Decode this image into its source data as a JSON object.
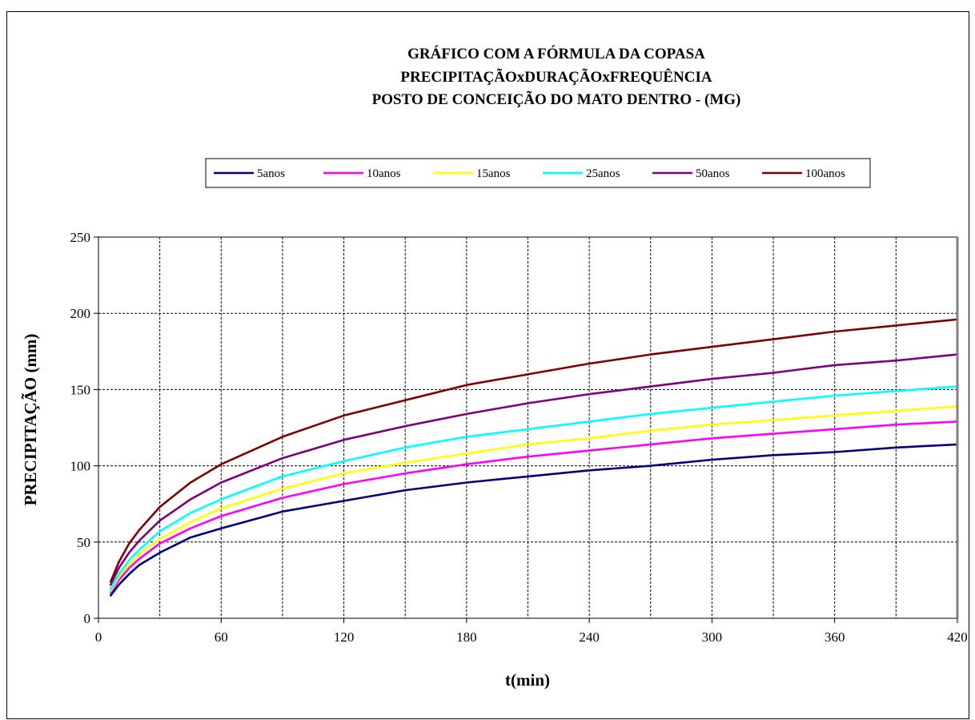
{
  "chart_data": {
    "type": "line",
    "title": [
      "GRÁFICO COM A FÓRMULA DA COPASA",
      "PRECIPITAÇÃOxDURAÇÃOxFREQUÊNCIA",
      "POSTO DE CONCEIÇÃO DO MATO DENTRO - (MG)"
    ],
    "xlabel": "t(min)",
    "ylabel": "PRECIPITAÇÃO  (mm)",
    "xlim": [
      0,
      420
    ],
    "ylim": [
      0,
      250
    ],
    "xticks": [
      0,
      60,
      120,
      180,
      240,
      300,
      360,
      420
    ],
    "yticks": [
      0,
      50,
      100,
      150,
      200,
      250
    ],
    "x_gridlines": [
      30,
      60,
      90,
      120,
      150,
      180,
      210,
      240,
      270,
      300,
      330,
      360,
      390
    ],
    "y_gridlines": [
      50,
      100,
      150,
      200
    ],
    "grid": true,
    "legend_position": "top",
    "x": [
      6,
      10,
      15,
      20,
      30,
      45,
      60,
      90,
      120,
      150,
      180,
      210,
      240,
      270,
      300,
      330,
      360,
      390,
      420
    ],
    "series": [
      {
        "name": "5anos",
        "color": "#000080",
        "values": [
          15,
          22,
          29,
          35,
          43,
          53,
          59,
          70,
          77,
          84,
          89,
          93,
          97,
          100,
          104,
          107,
          109,
          112,
          114
        ]
      },
      {
        "name": "10anos",
        "color": "#FF00FF",
        "values": [
          17,
          25,
          33,
          39,
          49,
          59,
          67,
          79,
          88,
          95,
          101,
          106,
          110,
          114,
          118,
          121,
          124,
          127,
          129
        ]
      },
      {
        "name": "15anos",
        "color": "#FFFF00",
        "values": [
          18,
          27,
          35,
          42,
          52,
          63,
          72,
          85,
          95,
          102,
          108,
          114,
          118,
          123,
          127,
          130,
          133,
          136,
          139
        ]
      },
      {
        "name": "25anos",
        "color": "#00FFFF",
        "values": [
          19,
          29,
          38,
          45,
          57,
          69,
          78,
          93,
          103,
          112,
          119,
          124,
          129,
          134,
          138,
          142,
          146,
          149,
          152
        ]
      },
      {
        "name": "50anos",
        "color": "#800080",
        "values": [
          22,
          33,
          43,
          51,
          64,
          78,
          89,
          105,
          117,
          126,
          134,
          141,
          147,
          152,
          157,
          161,
          166,
          169,
          173
        ]
      },
      {
        "name": "100anos",
        "color": "#800000",
        "values": [
          24,
          37,
          49,
          58,
          73,
          89,
          101,
          119,
          133,
          143,
          153,
          160,
          167,
          173,
          178,
          183,
          188,
          192,
          196
        ]
      }
    ]
  }
}
